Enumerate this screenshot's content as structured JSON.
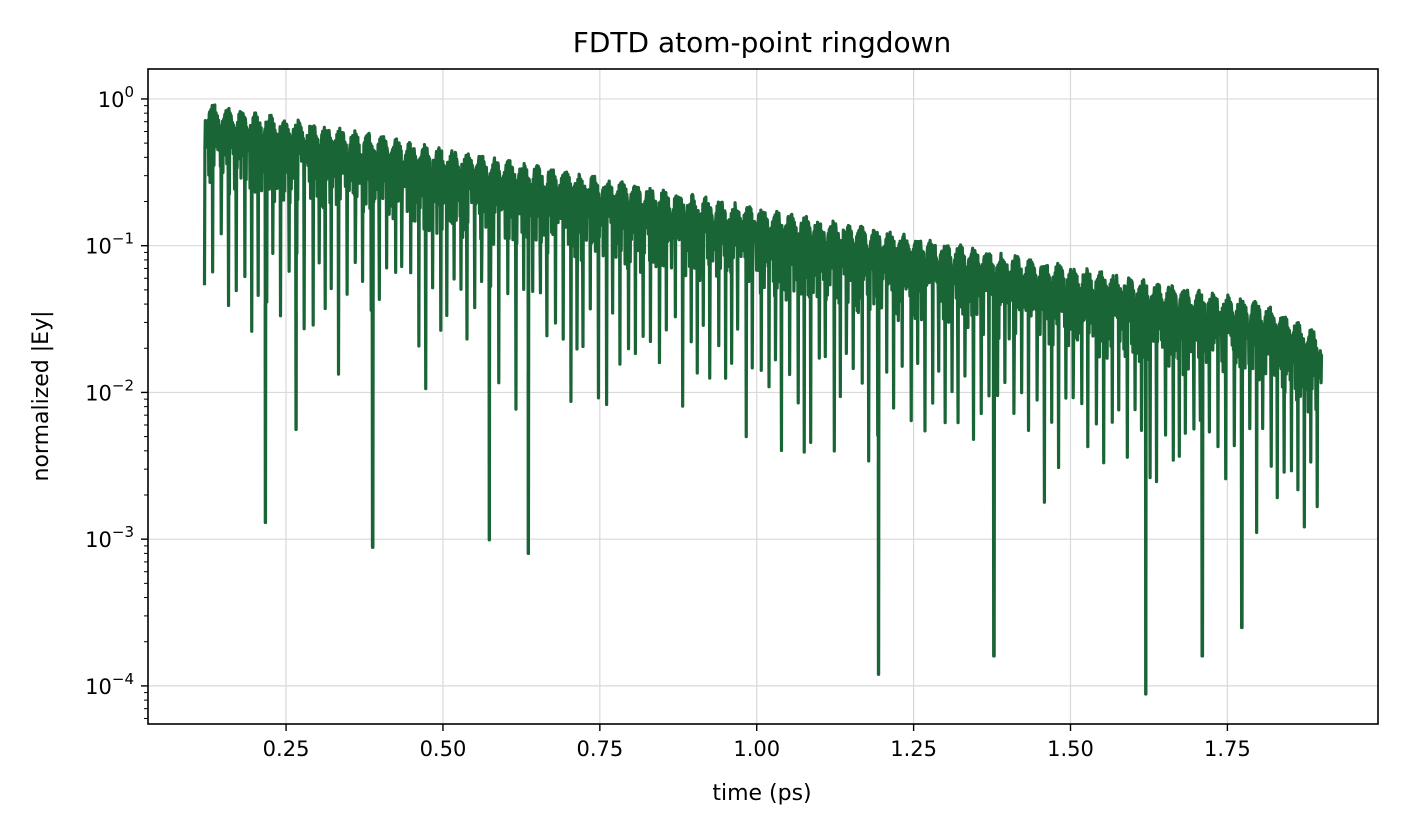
{
  "chart_data": {
    "type": "line",
    "title": "FDTD atom-point ringdown",
    "xlabel": "time (ps)",
    "ylabel": "normalized |Ey|",
    "xlim": [
      0.03,
      1.99
    ],
    "ylim": [
      5.5e-05,
      1.6
    ],
    "yscale": "log",
    "grid": true,
    "line_color": "#1a6536",
    "x_ticks": [
      {
        "value": 0.25,
        "label": "0.25"
      },
      {
        "value": 0.5,
        "label": "0.50"
      },
      {
        "value": 0.75,
        "label": "0.75"
      },
      {
        "value": 1.0,
        "label": "1.00"
      },
      {
        "value": 1.25,
        "label": "1.25"
      },
      {
        "value": 1.5,
        "label": "1.50"
      },
      {
        "value": 1.75,
        "label": "1.75"
      }
    ],
    "y_ticks": [
      {
        "value": 1,
        "base": "10",
        "exp": "0"
      },
      {
        "value": 0.1,
        "base": "10",
        "exp": "−1"
      },
      {
        "value": 0.01,
        "base": "10",
        "exp": "−2"
      },
      {
        "value": 0.001,
        "base": "10",
        "exp": "−3"
      },
      {
        "value": 0.0001,
        "base": "10",
        "exp": "−4"
      }
    ],
    "series": [
      {
        "x_start": 0.12,
        "x_end": 1.9,
        "envelope_start": 0.95,
        "envelope_end": 0.035,
        "envelope_tail_end": 0.025,
        "deep_minima": [
          {
            "x": 0.217,
            "y": 0.0013
          },
          {
            "x": 0.266,
            "y": 0.0056
          },
          {
            "x": 0.388,
            "y": 0.00088
          },
          {
            "x": 0.574,
            "y": 0.00099
          },
          {
            "x": 0.636,
            "y": 0.0008
          },
          {
            "x": 1.194,
            "y": 0.00012
          },
          {
            "x": 1.378,
            "y": 0.00016
          },
          {
            "x": 1.62,
            "y": 8.8e-05
          },
          {
            "x": 1.71,
            "y": 0.00016
          },
          {
            "x": 1.773,
            "y": 0.00025
          }
        ]
      }
    ]
  }
}
